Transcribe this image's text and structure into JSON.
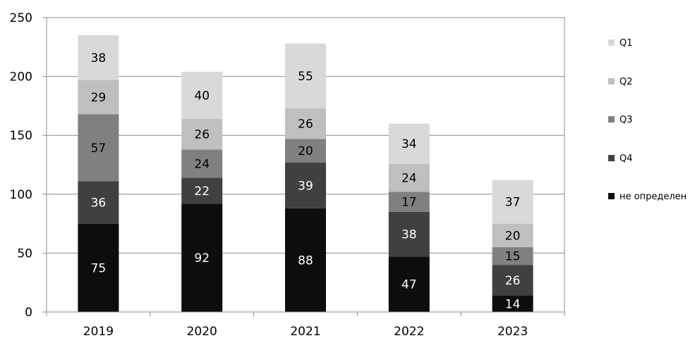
{
  "chart_data": {
    "type": "bar",
    "stacked": true,
    "categories": [
      "2019",
      "2020",
      "2021",
      "2022",
      "2023"
    ],
    "series": [
      {
        "name": "не определен",
        "color": "#0d0d0d",
        "label_color": "#ffffff",
        "values": [
          75,
          92,
          88,
          47,
          14
        ]
      },
      {
        "name": "Q4",
        "color": "#404040",
        "label_color": "#ffffff",
        "values": [
          36,
          22,
          39,
          38,
          26
        ]
      },
      {
        "name": "Q3",
        "color": "#808080",
        "label_color": "#000000",
        "values": [
          57,
          24,
          20,
          17,
          15
        ]
      },
      {
        "name": "Q2",
        "color": "#bfbfbf",
        "label_color": "#000000",
        "values": [
          29,
          26,
          26,
          24,
          20
        ]
      },
      {
        "name": "Q1",
        "color": "#d9d9d9",
        "label_color": "#000000",
        "values": [
          38,
          40,
          55,
          34,
          37
        ]
      }
    ],
    "ylim": [
      0,
      250
    ],
    "yticks": [
      0,
      50,
      100,
      150,
      200,
      250
    ],
    "grid": true,
    "legend_position": "right"
  }
}
